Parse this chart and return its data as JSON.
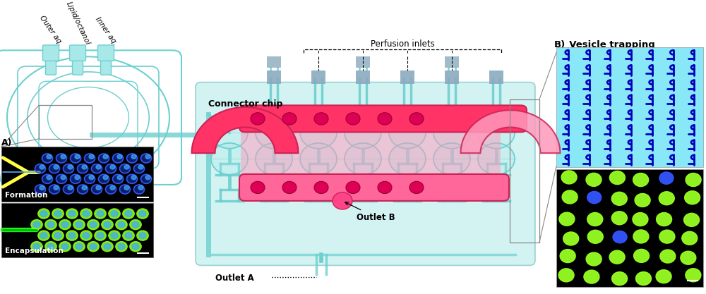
{
  "fig_width": 10.0,
  "fig_height": 4.17,
  "bg_color": "#ffffff",
  "cyan": "#6DCFCF",
  "cyan_light": "#A8E8E8",
  "cyan_dark": "#4AABAB",
  "cyan_medium": "#7DD8D8",
  "pink_bright": "#FF3366",
  "pink_mid": "#FF6699",
  "pink_light": "#FF99BB",
  "magenta": "#CC2255",
  "gray_blue": "#8BAABF",
  "gray_blue2": "#7A9AB8",
  "black": "#000000",
  "white": "#ffffff",
  "yellow": "#FFFF44",
  "blue_dot": "#2244FF",
  "green_dot": "#88FF22",
  "vesicle_cyan_bg": "#88E8F8",
  "vdark": "#0000BB",
  "text_outer_aq": "Outer aq.",
  "text_lipid": "Lipid/octanol",
  "text_inner_aq": "Inner aq.",
  "text_connector": "Connector chip",
  "text_perfusion": "Perfusion inlets",
  "text_outletA": "Outlet A",
  "text_outletB": "Outlet B",
  "text_formation": "Formation",
  "text_encapsulation": "Encapsulation",
  "text_vesicle": "Vesicle trapping",
  "label_A": "A)",
  "label_B": "B)"
}
